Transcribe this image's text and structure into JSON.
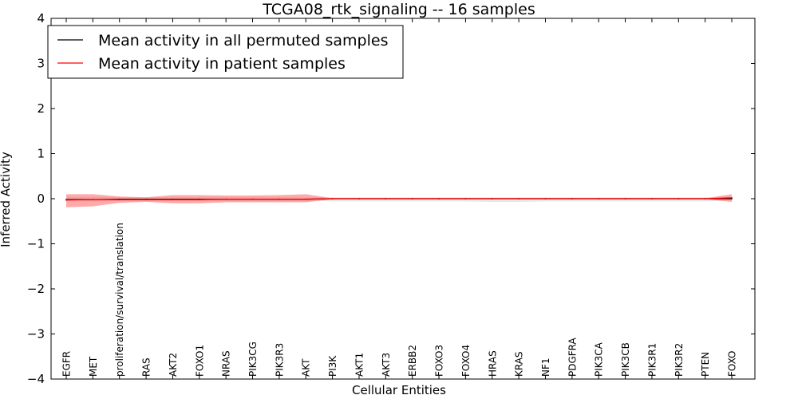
{
  "chart_data": {
    "type": "line",
    "title": "TCGA08_rtk_signaling -- 16 samples",
    "xlabel": "Cellular Entities",
    "ylabel": "Inferred Activity",
    "ylim": [
      -4,
      4
    ],
    "yticks": [
      -4,
      -3,
      -2,
      -1,
      0,
      1,
      2,
      3,
      4
    ],
    "ytick_labels": [
      "−4",
      "−3",
      "−2",
      "−1",
      "0",
      "1",
      "2",
      "3",
      "4"
    ],
    "legend_position": "top-left",
    "categories": [
      "EGFR",
      "MET",
      "proliferation/survival/translation",
      "RAS",
      "AKT2",
      "FOXO1",
      "NRAS",
      "PIK3CG",
      "PIK3R3",
      "AKT",
      "PI3K",
      "AKT1",
      "AKT3",
      "ERBB2",
      "FOXO3",
      "FOXO4",
      "HRAS",
      "KRAS",
      "NF1",
      "PDGFRA",
      "PIK3CA",
      "PIK3CB",
      "PIK3R1",
      "PIK3R2",
      "PTEN",
      "FOXO"
    ],
    "series": [
      {
        "name": "Mean activity in all permuted samples",
        "color": "#000000",
        "band_color": "#c8c8c8",
        "values": [
          -0.02,
          -0.02,
          -0.01,
          -0.01,
          -0.01,
          -0.01,
          -0.01,
          -0.01,
          -0.01,
          -0.01,
          0,
          0,
          0,
          0,
          0,
          0,
          0,
          0,
          0,
          0,
          0,
          0,
          0,
          0,
          0,
          0
        ],
        "lower": [
          -0.06,
          -0.06,
          -0.05,
          -0.05,
          -0.05,
          -0.05,
          -0.05,
          -0.05,
          -0.05,
          -0.05,
          -0.06,
          -0.06,
          -0.06,
          -0.06,
          -0.06,
          -0.06,
          -0.07,
          -0.07,
          -0.06,
          -0.06,
          -0.06,
          -0.06,
          -0.06,
          -0.06,
          -0.06,
          -0.04
        ],
        "upper": [
          0.04,
          0.04,
          0.03,
          0.03,
          0.03,
          0.03,
          0.03,
          0.03,
          0.03,
          0.03,
          0.03,
          0.03,
          0.03,
          0.03,
          0.03,
          0.03,
          0.03,
          0.03,
          0.03,
          0.03,
          0.03,
          0.03,
          0.03,
          0.03,
          0.03,
          0.04
        ]
      },
      {
        "name": "Mean activity in patient samples",
        "color": "#ff0000",
        "band_color": "#ff6464",
        "values": [
          -0.03,
          -0.02,
          -0.02,
          -0.02,
          -0.02,
          -0.02,
          -0.01,
          -0.01,
          -0.01,
          -0.01,
          0,
          0,
          0,
          0,
          0,
          0,
          0,
          0,
          0,
          0,
          0,
          0,
          0,
          0,
          0,
          0.02
        ],
        "lower": [
          -0.19,
          -0.17,
          -0.09,
          -0.07,
          -0.1,
          -0.1,
          -0.08,
          -0.08,
          -0.08,
          -0.08,
          -0.01,
          -0.01,
          -0.01,
          -0.01,
          -0.01,
          -0.01,
          -0.01,
          -0.01,
          -0.01,
          -0.01,
          -0.01,
          -0.01,
          -0.01,
          -0.01,
          -0.01,
          -0.07
        ],
        "upper": [
          0.1,
          0.1,
          0.05,
          0.03,
          0.08,
          0.08,
          0.07,
          0.07,
          0.08,
          0.1,
          0.01,
          0.01,
          0.01,
          0.01,
          0.01,
          0.01,
          0.01,
          0.01,
          0.01,
          0.01,
          0.01,
          0.01,
          0.01,
          0.01,
          0.01,
          0.1
        ]
      }
    ]
  }
}
